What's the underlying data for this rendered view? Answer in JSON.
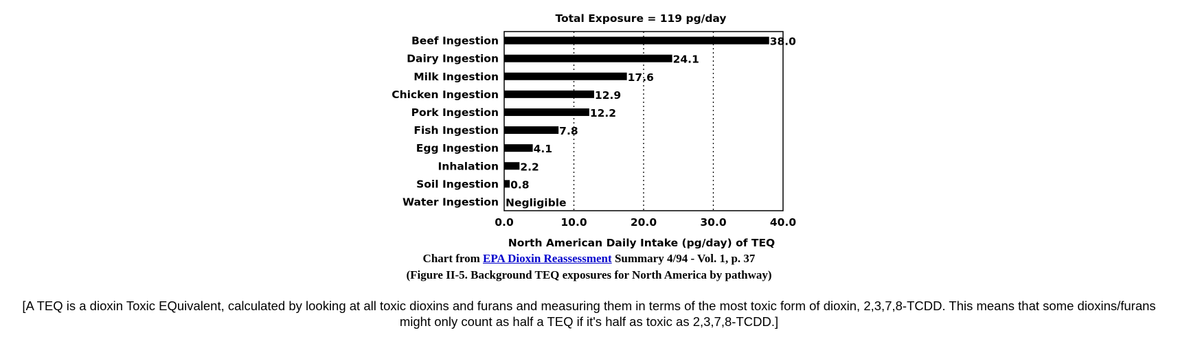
{
  "chart_data": {
    "type": "bar",
    "orientation": "horizontal",
    "title": "Total Exposure = 119 pg/day",
    "xlabel": "North American Daily Intake (pg/day) of TEQ",
    "ylabel": "",
    "xlim": [
      0,
      40
    ],
    "grid": "vertical dotted",
    "x_ticks": [
      0,
      10,
      20,
      30,
      40
    ],
    "x_tick_labels": [
      "0.0",
      "10.0",
      "20.0",
      "30.0",
      "40.0"
    ],
    "categories": [
      "Beef Ingestion",
      "Dairy Ingestion",
      "Milk Ingestion",
      "Chicken Ingestion",
      "Pork Ingestion",
      "Fish Ingestion",
      "Egg Ingestion",
      "Inhalation",
      "Soil Ingestion",
      "Water Ingestion"
    ],
    "values": [
      38.0,
      24.1,
      17.6,
      12.9,
      12.2,
      7.8,
      4.1,
      2.2,
      0.8,
      0
    ],
    "value_labels": [
      "38.0",
      "24.1",
      "17.6",
      "12.9",
      "12.2",
      "7.8",
      "4.1",
      "2.2",
      "0.8",
      "Negligible"
    ],
    "bar_color": "#000000"
  },
  "caption": {
    "line1_prefix": "Chart from",
    "link_text": "EPA Dioxin Reassessment",
    "line1_suffix": "Summary 4/94 - Vol. 1, p. 37",
    "line2": "(Figure II-5. Background TEQ exposures for North America by pathway)"
  },
  "note": "[A TEQ is a dioxin Toxic EQuivalent, calculated by looking at all toxic dioxins and furans and measuring them in terms of the most toxic form of dioxin, 2,3,7,8-TCDD. This means that some dioxins/furans might only count as half a TEQ if it's half as toxic as 2,3,7,8-TCDD.]",
  "colors": {
    "link": "#0000cc",
    "text": "#000000"
  }
}
